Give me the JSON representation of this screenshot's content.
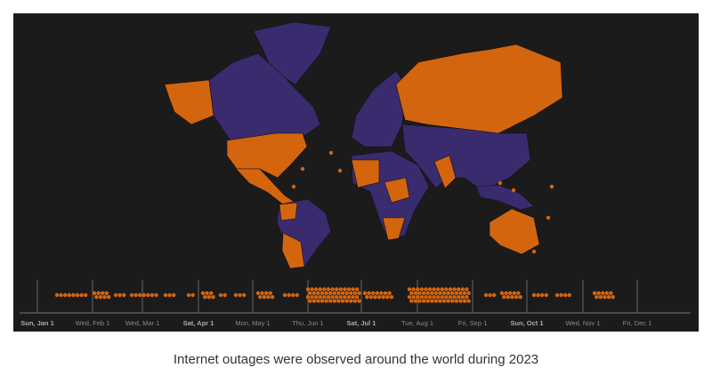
{
  "timeline": {
    "ticks": [
      "Sun, Jan 1",
      "Wed, Feb 1",
      "Wed, Mar 1",
      "Sat, Apr 1",
      "Mon, May 1",
      "Thu, Jun 1",
      "Sat, Jul 1",
      "Tue, Aug 1",
      "Fri, Sep 1",
      "Sun, Oct 1",
      "Wed, Nov 1",
      "Fri, Dec 1"
    ]
  },
  "caption": "Internet outages were observed around the world during 2023"
}
